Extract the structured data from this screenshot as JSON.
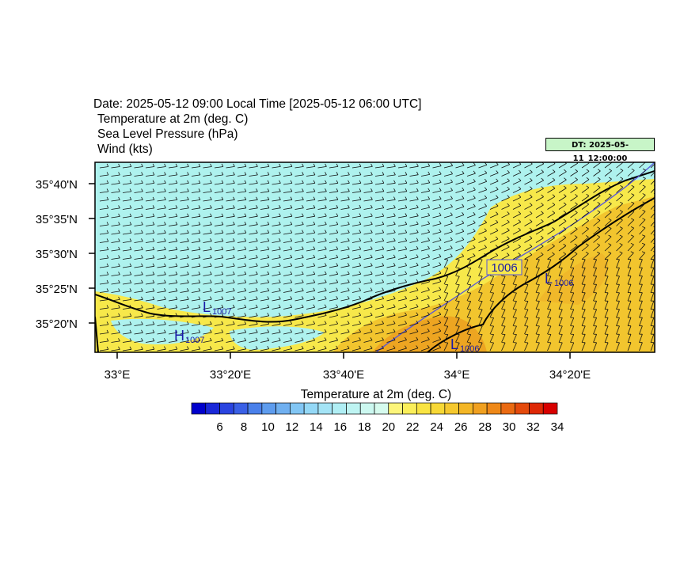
{
  "header": {
    "date_line": "Date: 2025-05-12  09:00 Local Time [2025-05-12  06:00 UTC]",
    "field1": "Temperature at 2m   (deg. C)",
    "field2": "Sea Level Pressure   (hPa)",
    "field3": "Wind   (kts)"
  },
  "dt_badge": "DT: 2025-05-11_12:00:00",
  "map": {
    "lat_labels": [
      "35°40'N",
      "35°35'N",
      "35°30'N",
      "35°25'N",
      "35°20'N"
    ],
    "lon_labels": [
      "33°E",
      "33°20'E",
      "33°40'E",
      "34°E",
      "34°20'E"
    ],
    "pressure_label": "1006",
    "lows": [
      {
        "letter": "L",
        "value": "1007"
      },
      {
        "letter": "L",
        "value": "1006"
      },
      {
        "letter": "L",
        "value": "1006"
      }
    ],
    "highs": [
      {
        "letter": "H",
        "value": "1007"
      }
    ],
    "colors": {
      "sea": "#aef2ee",
      "land_warm": "#f7e84a",
      "land_hot": "#f2c52e",
      "land_hotter": "#eda521",
      "isobar": "#5555dd",
      "label": "#1a1aa8"
    }
  },
  "colorbar": {
    "title": "Temperature at 2m  (deg. C)",
    "labels": [
      "6",
      "8",
      "10",
      "12",
      "14",
      "16",
      "18",
      "20",
      "22",
      "24",
      "26",
      "28",
      "30",
      "32",
      "34"
    ],
    "colors": [
      "#0000cc",
      "#1a28d8",
      "#2a44e0",
      "#3a60e6",
      "#4a80ea",
      "#5e9cee",
      "#70b0f0",
      "#82c6f4",
      "#94d8f6",
      "#a4e4f6",
      "#b0eef4",
      "#bef4f2",
      "#ccf8f0",
      "#d6fbee",
      "#fdf57a",
      "#fbef5a",
      "#f9e442",
      "#f7d836",
      "#f5c82e",
      "#f3b626",
      "#f0a020",
      "#ee8818",
      "#ea6a12",
      "#e44a0c",
      "#de2806",
      "#d80000"
    ]
  }
}
